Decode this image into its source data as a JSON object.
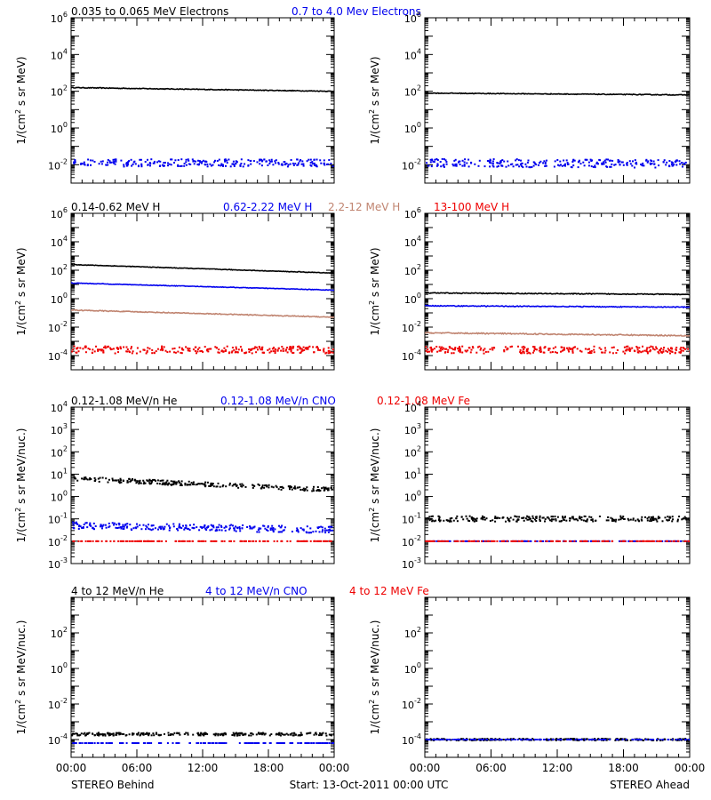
{
  "colors": {
    "black": "#000000",
    "blue": "#0000ee",
    "tan": "#c08470",
    "red": "#ee0000",
    "frame": "#000000",
    "background": "#ffffff"
  },
  "titles": {
    "row1": [
      {
        "text": "0.035 to 0.065 MeV Electrons",
        "color": "black"
      },
      {
        "text": "0.7 to 4.0 Mev Electrons",
        "color": "blue"
      }
    ],
    "row2": [
      {
        "text": "0.14-0.62 MeV H",
        "color": "black"
      },
      {
        "text": "0.62-2.22 MeV H",
        "color": "blue"
      },
      {
        "text": "2.2-12 MeV H",
        "color": "tan"
      },
      {
        "text": "13-100 MeV H",
        "color": "red"
      }
    ],
    "row3": [
      {
        "text": "0.12-1.08 MeV/n He",
        "color": "black"
      },
      {
        "text": "0.12-1.08 MeV/n CNO",
        "color": "blue"
      },
      {
        "text": "0.12-1.08 MeV Fe",
        "color": "red"
      }
    ],
    "row4": [
      {
        "text": "4 to 12 MeV/n He",
        "color": "black"
      },
      {
        "text": "4 to 12 MeV/n CNO",
        "color": "blue"
      },
      {
        "text": "4 to 12 MeV Fe",
        "color": "red"
      }
    ]
  },
  "ylabels": {
    "mev": [
      "1/(cm",
      "2",
      " s sr MeV)"
    ],
    "nuc": [
      "1/(cm",
      "2",
      " s sr MeV/nuc.)"
    ]
  },
  "xtick_labels": [
    "00:00",
    "06:00",
    "12:00",
    "18:00",
    "00:00"
  ],
  "footer": {
    "left": "STEREO Behind",
    "center": "Start: 13-Oct-2011 00:00 UTC",
    "right": "STEREO Ahead"
  },
  "chart_data": [
    {
      "type": "scatter",
      "panel": "Behind electrons",
      "ylog": true,
      "ylim_exp": [
        -3,
        6
      ],
      "yticks": [
        {
          "base": "10",
          "exp": "6"
        },
        {
          "base": "10",
          "exp": "4"
        },
        {
          "base": "10",
          "exp": "2"
        },
        {
          "base": "10",
          "exp": "0"
        },
        {
          "base": "10",
          "exp": "-2"
        }
      ],
      "x_hours": [
        0,
        24
      ],
      "series": [
        {
          "name": "0.035 to 0.065 MeV Electrons",
          "color": "black",
          "style": "line",
          "log10_start": 2.2,
          "log10_end": 2.0,
          "noise": 0.02
        },
        {
          "name": "0.7 to 4.0 Mev Electrons",
          "color": "blue",
          "style": "dots",
          "log10_start": -1.9,
          "log10_end": -1.9,
          "noise": 0.2
        }
      ]
    },
    {
      "type": "scatter",
      "panel": "Ahead electrons",
      "ylog": true,
      "ylim_exp": [
        -3,
        6
      ],
      "yticks": [
        {
          "base": "10",
          "exp": "6"
        },
        {
          "base": "10",
          "exp": "4"
        },
        {
          "base": "10",
          "exp": "2"
        },
        {
          "base": "10",
          "exp": "0"
        },
        {
          "base": "10",
          "exp": "-2"
        }
      ],
      "x_hours": [
        0,
        24
      ],
      "series": [
        {
          "name": "0.035 to 0.065 MeV Electrons",
          "color": "black",
          "style": "line",
          "log10_start": 1.9,
          "log10_end": 1.8,
          "noise": 0.02
        },
        {
          "name": "0.7 to 4.0 Mev Electrons",
          "color": "blue",
          "style": "dots",
          "log10_start": -1.9,
          "log10_end": -1.95,
          "noise": 0.22
        }
      ]
    },
    {
      "type": "scatter",
      "panel": "Behind protons",
      "ylog": true,
      "ylim_exp": [
        -5,
        6
      ],
      "yticks": [
        {
          "base": "10",
          "exp": "6"
        },
        {
          "base": "10",
          "exp": "4"
        },
        {
          "base": "10",
          "exp": "2"
        },
        {
          "base": "10",
          "exp": "0"
        },
        {
          "base": "10",
          "exp": "-2"
        },
        {
          "base": "10",
          "exp": "-4"
        }
      ],
      "x_hours": [
        0,
        24
      ],
      "series": [
        {
          "name": "0.14-0.62 MeV H",
          "color": "black",
          "style": "line",
          "log10_start": 2.4,
          "log10_end": 1.8,
          "noise": 0.02
        },
        {
          "name": "0.62-2.22 MeV H",
          "color": "blue",
          "style": "line",
          "log10_start": 1.1,
          "log10_end": 0.6,
          "noise": 0.02
        },
        {
          "name": "2.2-12 MeV H",
          "color": "tan",
          "style": "line",
          "log10_start": -0.8,
          "log10_end": -1.3,
          "noise": 0.03
        },
        {
          "name": "13-100 MeV H",
          "color": "red",
          "style": "dots",
          "log10_start": -3.6,
          "log10_end": -3.6,
          "noise": 0.25
        }
      ]
    },
    {
      "type": "scatter",
      "panel": "Ahead protons",
      "ylog": true,
      "ylim_exp": [
        -5,
        6
      ],
      "yticks": [
        {
          "base": "10",
          "exp": "6"
        },
        {
          "base": "10",
          "exp": "4"
        },
        {
          "base": "10",
          "exp": "2"
        },
        {
          "base": "10",
          "exp": "0"
        },
        {
          "base": "10",
          "exp": "-2"
        },
        {
          "base": "10",
          "exp": "-4"
        }
      ],
      "x_hours": [
        0,
        24
      ],
      "series": [
        {
          "name": "0.14-0.62 MeV H",
          "color": "black",
          "style": "line",
          "log10_start": 0.4,
          "log10_end": 0.3,
          "noise": 0.03
        },
        {
          "name": "0.62-2.22 MeV H",
          "color": "blue",
          "style": "line",
          "log10_start": -0.5,
          "log10_end": -0.6,
          "noise": 0.03
        },
        {
          "name": "2.2-12 MeV H",
          "color": "tan",
          "style": "line",
          "log10_start": -2.4,
          "log10_end": -2.6,
          "noise": 0.04
        },
        {
          "name": "13-100 MeV H",
          "color": "red",
          "style": "dots",
          "log10_start": -3.6,
          "log10_end": -3.6,
          "noise": 0.25
        }
      ]
    },
    {
      "type": "scatter",
      "panel": "Behind ions",
      "ylog": true,
      "ylim_exp": [
        -3,
        4
      ],
      "yticks": [
        {
          "base": "10",
          "exp": "4"
        },
        {
          "base": "10",
          "exp": "3"
        },
        {
          "base": "10",
          "exp": "2"
        },
        {
          "base": "10",
          "exp": "1"
        },
        {
          "base": "10",
          "exp": "0"
        },
        {
          "base": "10",
          "exp": "-1"
        },
        {
          "base": "10",
          "exp": "-2"
        },
        {
          "base": "10",
          "exp": "-3"
        }
      ],
      "x_hours": [
        0,
        24
      ],
      "series": [
        {
          "name": "0.12-1.08 MeV/n He",
          "color": "black",
          "style": "dots",
          "log10_start": 0.8,
          "log10_end": 0.3,
          "noise": 0.1
        },
        {
          "name": "0.12-1.08 MeV/n CNO",
          "color": "blue",
          "style": "dots",
          "log10_start": -1.3,
          "log10_end": -1.5,
          "noise": 0.15
        },
        {
          "name": "0.12-1.08 MeV Fe",
          "color": "red",
          "style": "dots",
          "log10_start": -2.0,
          "log10_end": -2.0,
          "noise": 0.0
        }
      ]
    },
    {
      "type": "scatter",
      "panel": "Ahead ions",
      "ylog": true,
      "ylim_exp": [
        -3,
        4
      ],
      "yticks": [
        {
          "base": "10",
          "exp": "4"
        },
        {
          "base": "10",
          "exp": "3"
        },
        {
          "base": "10",
          "exp": "2"
        },
        {
          "base": "10",
          "exp": "1"
        },
        {
          "base": "10",
          "exp": "0"
        },
        {
          "base": "10",
          "exp": "-1"
        },
        {
          "base": "10",
          "exp": "-2"
        },
        {
          "base": "10",
          "exp": "-3"
        }
      ],
      "x_hours": [
        0,
        24
      ],
      "series": [
        {
          "name": "0.12-1.08 MeV/n He",
          "color": "black",
          "style": "dots",
          "log10_start": -1.0,
          "log10_end": -1.0,
          "noise": 0.12
        },
        {
          "name": "0.12-1.08 MeV/n CNO",
          "color": "blue",
          "style": "dots",
          "log10_start": -2.0,
          "log10_end": -2.0,
          "noise": 0.0
        },
        {
          "name": "0.12-1.08 MeV Fe",
          "color": "red",
          "style": "dots",
          "log10_start": -2.0,
          "log10_end": -2.0,
          "noise": 0.0
        }
      ]
    },
    {
      "type": "scatter",
      "panel": "Behind high-energy ions",
      "ylog": true,
      "ylim_exp": [
        -5,
        4
      ],
      "yticks": [
        {
          "base": "10",
          "exp": "2"
        },
        {
          "base": "10",
          "exp": "0"
        },
        {
          "base": "10",
          "exp": "-2"
        },
        {
          "base": "10",
          "exp": "-4"
        }
      ],
      "x_hours": [
        0,
        24
      ],
      "series": [
        {
          "name": "4 to 12 MeV/n He",
          "color": "black",
          "style": "dots",
          "log10_start": -3.7,
          "log10_end": -3.7,
          "noise": 0.08
        },
        {
          "name": "4 to 12 MeV/n CNO",
          "color": "blue",
          "style": "dots",
          "log10_start": -4.2,
          "log10_end": -4.2,
          "noise": 0.0
        }
      ]
    },
    {
      "type": "scatter",
      "panel": "Ahead high-energy ions",
      "ylog": true,
      "ylim_exp": [
        -5,
        4
      ],
      "yticks": [
        {
          "base": "10",
          "exp": "2"
        },
        {
          "base": "10",
          "exp": "0"
        },
        {
          "base": "10",
          "exp": "-2"
        },
        {
          "base": "10",
          "exp": "-4"
        }
      ],
      "x_hours": [
        0,
        24
      ],
      "series": [
        {
          "name": "4 to 12 MeV/n He",
          "color": "black",
          "style": "dots",
          "log10_start": -4.0,
          "log10_end": -4.0,
          "noise": 0.05
        },
        {
          "name": "4 to 12 MeV/n CNO",
          "color": "blue",
          "style": "dots",
          "log10_start": -4.0,
          "log10_end": -4.0,
          "noise": 0.0
        }
      ]
    }
  ]
}
